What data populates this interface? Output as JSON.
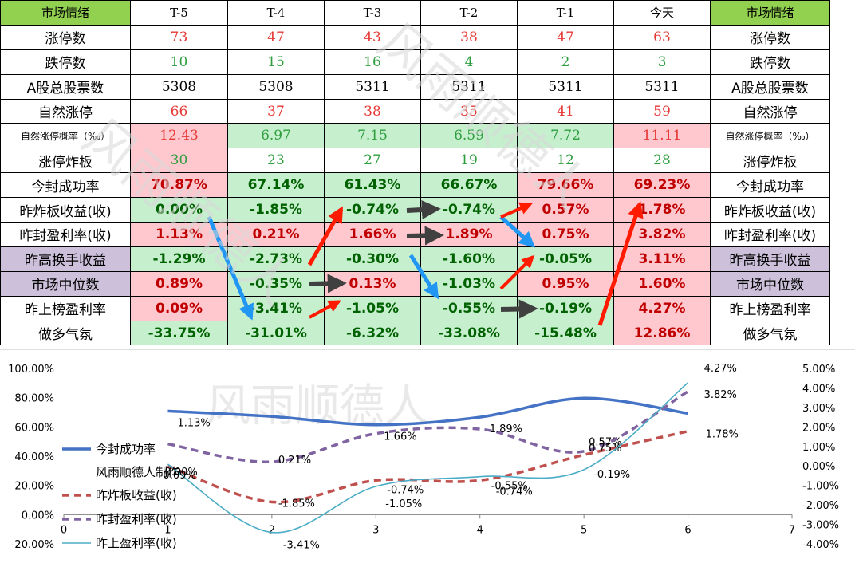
{
  "table": {
    "header": [
      "市场情绪",
      "T-5",
      "T-4",
      "T-3",
      "T-2",
      "T-1",
      "今天",
      "市场情绪"
    ],
    "rows": [
      {
        "label": "涨停数",
        "values": [
          "73",
          "47",
          "43",
          "38",
          "47",
          "63"
        ]
      },
      {
        "label": "跌停数",
        "values": [
          "10",
          "15",
          "16",
          "4",
          "2",
          "3"
        ]
      },
      {
        "label": "A股总股票数",
        "values": [
          "5308",
          "5308",
          "5311",
          "5311",
          "5311",
          "5311"
        ]
      },
      {
        "label": "自然涨停",
        "values": [
          "66",
          "37",
          "38",
          "35",
          "41",
          "59"
        ]
      },
      {
        "label": "自然涨停概率（‰）",
        "values": [
          "12.43",
          "6.97",
          "7.15",
          "6.59",
          "7.72",
          "11.11"
        ]
      },
      {
        "label": "涨停炸板",
        "values": [
          "30",
          "23",
          "27",
          "19",
          "12",
          "28"
        ]
      },
      {
        "label": "今封成功率",
        "values": [
          "70.87%",
          "67.14%",
          "61.43%",
          "66.67%",
          "79.66%",
          "69.23%"
        ]
      },
      {
        "label": "昨炸板收益(收)",
        "values": [
          "0.00%",
          "-1.85%",
          "-0.74%",
          "-0.74%",
          "0.57%",
          "1.78%"
        ]
      },
      {
        "label": "昨封盈利率(收)",
        "values": [
          "1.13%",
          "0.21%",
          "1.66%",
          "1.89%",
          "0.75%",
          "3.82%"
        ]
      },
      {
        "label": "昨高换手收益",
        "values": [
          "-1.29%",
          "-2.73%",
          "-0.30%",
          "-1.60%",
          "-0.05%",
          "3.11%"
        ]
      },
      {
        "label": "市场中位数",
        "values": [
          "0.89%",
          "-0.35%",
          "0.13%",
          "-1.03%",
          "0.95%",
          "1.60%"
        ]
      },
      {
        "label": "昨上榜盈利率",
        "values": [
          "0.09%",
          "-3.41%",
          "-1.05%",
          "-0.55%",
          "-0.19%",
          "4.27%"
        ]
      },
      {
        "label": "做多气氛",
        "values": [
          "-33.75%",
          "-31.01%",
          "-6.32%",
          "-33.08%",
          "-15.48%",
          "12.86%"
        ]
      }
    ]
  },
  "watermark": "风雨顺德人",
  "colors": {
    "header_green": "#92d050",
    "purple": "#ccc0da",
    "pink": "#ffc7ce",
    "light_green": "#c6efce",
    "series_blue": "#4472c4",
    "series_red": "#c0504d",
    "series_purple": "#8064a2",
    "series_cyan": "#4bacc6",
    "arrow_blue": "#2196f3",
    "arrow_red": "#ff1a00",
    "arrow_gray": "#404040"
  },
  "chart_data": {
    "type": "line",
    "x": [
      1,
      2,
      3,
      4,
      5,
      6
    ],
    "xticks": [
      "0",
      "1",
      "2",
      "3",
      "4",
      "5",
      "6",
      "7"
    ],
    "xlim": [
      0,
      7
    ],
    "y_left_ticks": [
      "100.00%",
      "80.00%",
      "60.00%",
      "40.00%",
      "20.00%",
      "0.00%",
      "-20.00%"
    ],
    "y_left_lim": [
      -20,
      100
    ],
    "y_right_ticks": [
      "5.00%",
      "4.00%",
      "3.00%",
      "2.00%",
      "1.00%",
      "0.00%",
      "-1.00%",
      "-2.00%",
      "-3.00%",
      "-4.00%"
    ],
    "y_right_lim": [
      -4,
      5
    ],
    "legend_extra": "风雨顺德人制作",
    "series": [
      {
        "name": "今封成功率",
        "axis": "left",
        "style": "solid",
        "values": [
          70.87,
          67.14,
          61.43,
          66.67,
          79.66,
          69.23
        ],
        "labels": []
      },
      {
        "name": "昨炸板收益(收)",
        "axis": "right",
        "style": "dashed",
        "values": [
          0.0,
          -1.85,
          -0.74,
          -0.74,
          0.57,
          1.78
        ],
        "labels": [
          "0.00%",
          "-1.85%",
          "-0.74%",
          "-0.74%",
          "0.57%",
          "1.78%"
        ]
      },
      {
        "name": "昨封盈利率(收)",
        "axis": "right",
        "style": "dashed",
        "values": [
          1.13,
          0.21,
          1.66,
          1.89,
          0.75,
          3.82
        ],
        "labels": [
          "1.13%",
          "0.21%",
          "1.66%",
          "1.89%",
          "0.75%",
          "3.82%"
        ]
      },
      {
        "name": "昨上盈利率(收)",
        "axis": "right",
        "style": "thin",
        "values": [
          0.09,
          -3.41,
          -1.05,
          -0.55,
          -0.19,
          4.27
        ],
        "labels": [
          "0.09%",
          "-3.41%",
          "-1.05%",
          "-0.55%",
          "-0.19%",
          "4.27%"
        ]
      }
    ]
  }
}
